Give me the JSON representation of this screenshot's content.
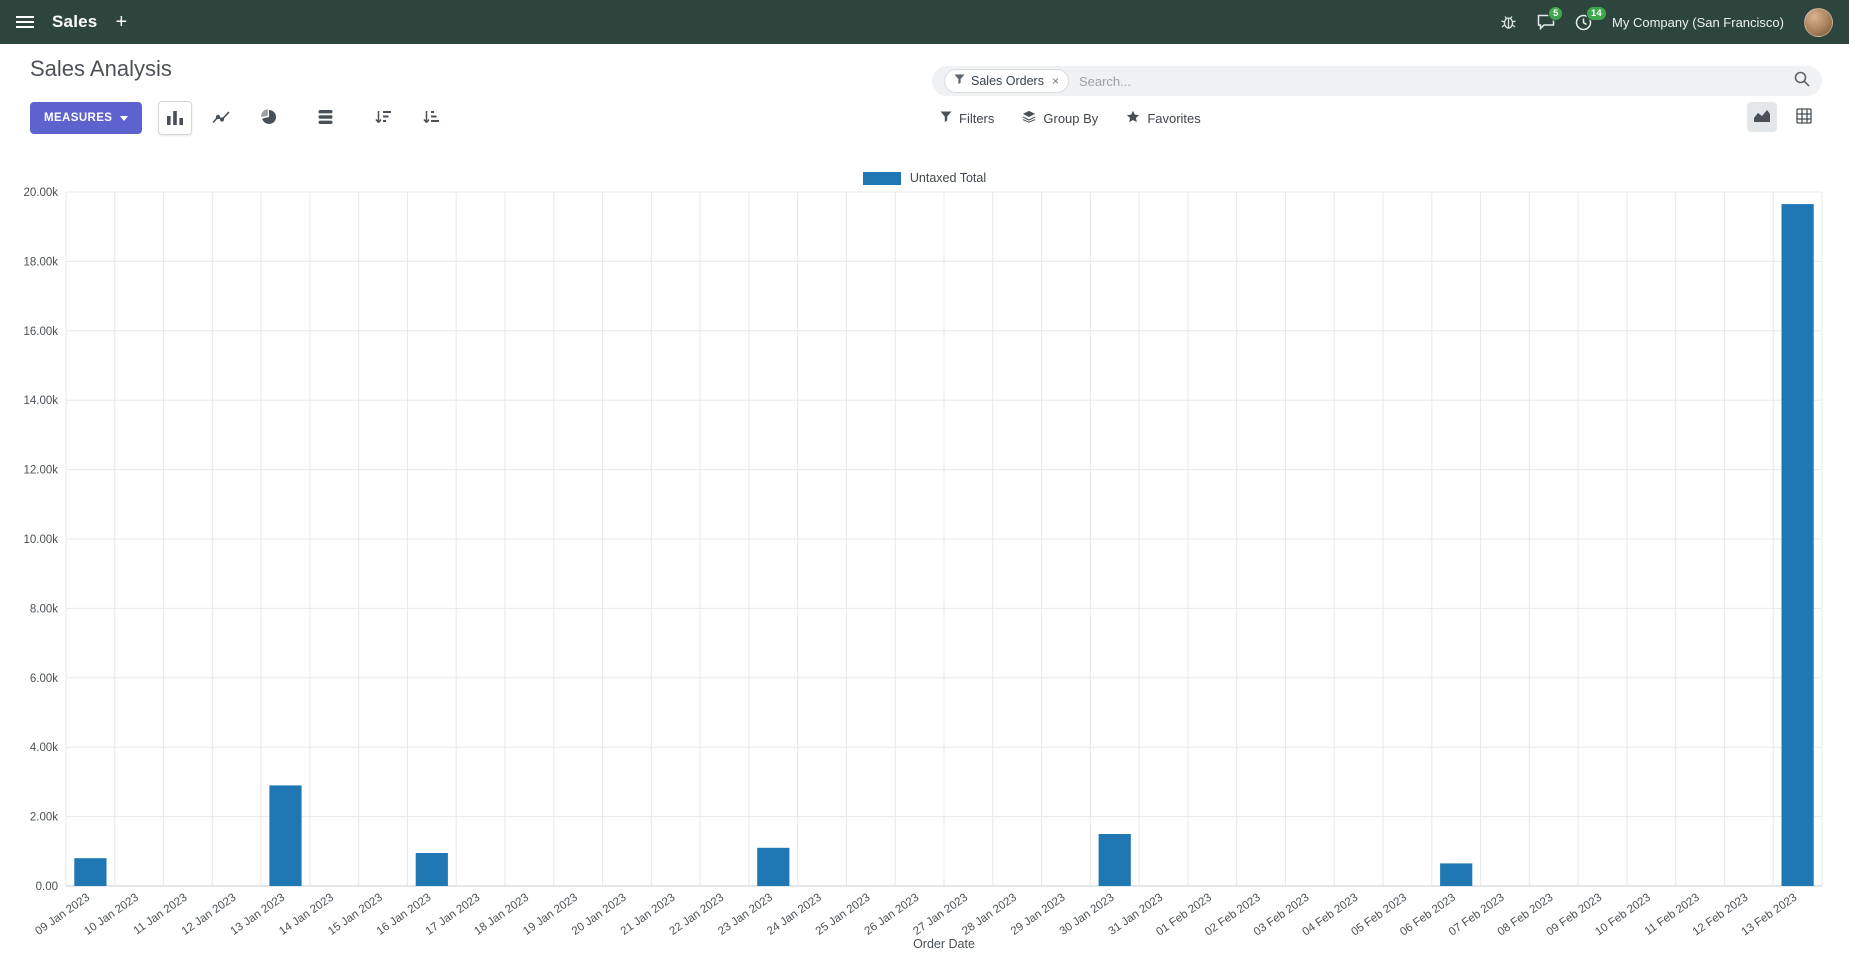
{
  "navbar": {
    "app_name": "Sales",
    "plus_label": "+",
    "message_count": "5",
    "activity_count": "14",
    "company": "My Company (San Francisco)"
  },
  "control_panel": {
    "title": "Sales Analysis",
    "search": {
      "facet_label": "Sales Orders",
      "facet_remove": "×",
      "placeholder": "Search..."
    },
    "measures_label": "MEASURES",
    "filters_label": "Filters",
    "group_by_label": "Group By",
    "favorites_label": "Favorites"
  },
  "chart_data": {
    "type": "bar",
    "title": "",
    "xlabel": "Order Date",
    "ylabel": "",
    "ylim": [
      0,
      20000
    ],
    "ytick_step": 2000,
    "ytick_labels": [
      "0.00",
      "2.00k",
      "4.00k",
      "6.00k",
      "8.00k",
      "10.00k",
      "12.00k",
      "14.00k",
      "16.00k",
      "18.00k",
      "20.00k"
    ],
    "grid": true,
    "legend_position": "top",
    "bar_color": "#1f77b4",
    "categories": [
      "09 Jan 2023",
      "10 Jan 2023",
      "11 Jan 2023",
      "12 Jan 2023",
      "13 Jan 2023",
      "14 Jan 2023",
      "15 Jan 2023",
      "16 Jan 2023",
      "17 Jan 2023",
      "18 Jan 2023",
      "19 Jan 2023",
      "20 Jan 2023",
      "21 Jan 2023",
      "22 Jan 2023",
      "23 Jan 2023",
      "24 Jan 2023",
      "25 Jan 2023",
      "26 Jan 2023",
      "27 Jan 2023",
      "28 Jan 2023",
      "29 Jan 2023",
      "30 Jan 2023",
      "31 Jan 2023",
      "01 Feb 2023",
      "02 Feb 2023",
      "03 Feb 2023",
      "04 Feb 2023",
      "05 Feb 2023",
      "06 Feb 2023",
      "07 Feb 2023",
      "08 Feb 2023",
      "09 Feb 2023",
      "10 Feb 2023",
      "11 Feb 2023",
      "12 Feb 2023",
      "13 Feb 2023"
    ],
    "series": [
      {
        "name": "Untaxed Total",
        "values": [
          800,
          0,
          0,
          0,
          2900,
          0,
          0,
          950,
          0,
          0,
          0,
          0,
          0,
          0,
          1100,
          0,
          0,
          0,
          0,
          0,
          0,
          1500,
          0,
          0,
          0,
          0,
          0,
          0,
          650,
          0,
          0,
          0,
          0,
          0,
          0,
          19650
        ]
      }
    ]
  }
}
